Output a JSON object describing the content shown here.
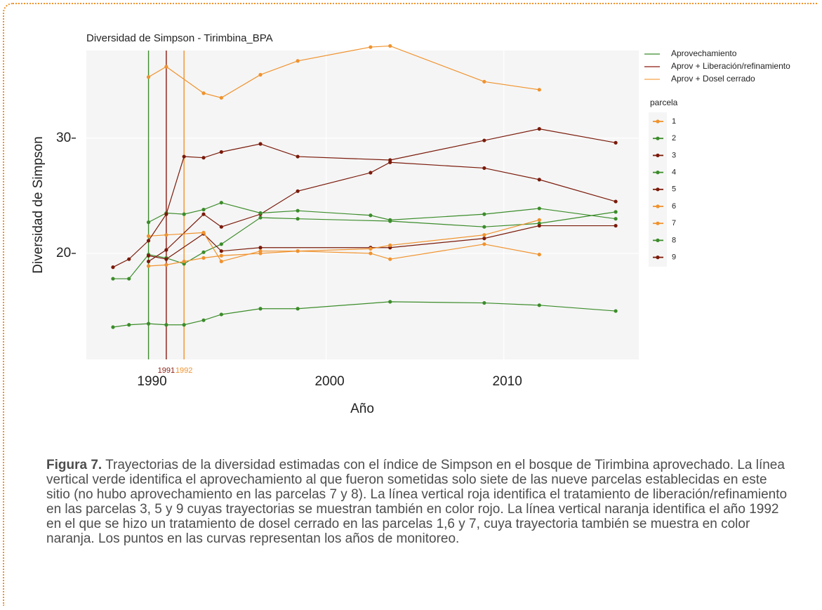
{
  "chart_data": {
    "type": "line",
    "title": "Diversidad de Simpson - Tirimbina_BPA",
    "xlabel": "Año",
    "ylabel": "Diversidad de Simpson",
    "xlim": [
      1986.5,
      2017.6
    ],
    "ylim": [
      10.8,
      37.6
    ],
    "xticks": [
      1990,
      2000,
      2010
    ],
    "yticks": [
      20,
      30
    ],
    "grid": true,
    "vlines": [
      {
        "x": 1990,
        "color": "#3b8c2a"
      },
      {
        "x": 1991,
        "color": "#8b1a0e",
        "label": "1991"
      },
      {
        "x": 1992,
        "color": "#f0922c",
        "label": "1992"
      }
    ],
    "treatments": [
      {
        "name": "Aprovechamiento",
        "color": "#3b8c2a"
      },
      {
        "name": "Aprov + Liberación/refinamiento",
        "color": "#8b1a0e"
      },
      {
        "name": "Aprov + Dosel cerrado",
        "color": "#f5a347"
      }
    ],
    "legend_title": "parcela",
    "series": [
      {
        "name": "1",
        "color": "#f0922c",
        "x": [
          1990,
          1991,
          1993.1,
          1994.1,
          1996.3,
          1998.4,
          2002.5,
          2003.6,
          2008.9,
          2012
        ],
        "values": [
          35.3,
          36.2,
          33.9,
          33.5,
          35.5,
          36.7,
          37.9,
          38.0,
          34.9,
          34.2
        ]
      },
      {
        "name": "2",
        "color": "#3b8c2a",
        "x": [
          1988,
          1988.9,
          1990,
          1991,
          1992,
          1993.1,
          1994.1,
          1996.3,
          1998.4,
          2003.6,
          2008.9,
          2012,
          2016.3
        ],
        "values": [
          17.8,
          17.8,
          19.9,
          19.6,
          19.1,
          20.1,
          20.8,
          23.1,
          23.0,
          22.8,
          22.3,
          22.6,
          23.6
        ]
      },
      {
        "name": "3",
        "color": "#7a1a0a",
        "x": [
          1990,
          1991,
          1993.1,
          1994.1,
          1996.3,
          1998.4,
          2002.5,
          2003.6,
          2008.9,
          2012,
          2016.3
        ],
        "values": [
          19.3,
          20.3,
          23.4,
          22.3,
          23.4,
          25.4,
          27.0,
          27.9,
          27.4,
          26.4,
          24.5
        ]
      },
      {
        "name": "4",
        "color": "#3b8c2a",
        "x": [
          1990,
          1991,
          1992,
          1993.1,
          1994.1,
          1996.3,
          1998.4,
          2002.5,
          2003.6,
          2008.9,
          2012,
          2016.3
        ],
        "values": [
          22.7,
          23.5,
          23.4,
          23.8,
          24.4,
          23.5,
          23.7,
          23.3,
          22.9,
          23.4,
          23.9,
          23.0
        ]
      },
      {
        "name": "5",
        "color": "#7a1a0a",
        "x": [
          1990,
          1991,
          1993.1,
          1994.1,
          1996.3,
          2002.5,
          2003.6,
          2008.9,
          2012,
          2016.3
        ],
        "values": [
          19.8,
          19.5,
          21.7,
          20.2,
          20.5,
          20.5,
          20.5,
          21.3,
          22.4,
          22.4
        ]
      },
      {
        "name": "6",
        "color": "#f0922c",
        "x": [
          1990,
          1991,
          1993.1,
          1994.1,
          1996.3,
          1998.4,
          2002.5,
          2003.6,
          2008.9,
          2012
        ],
        "values": [
          21.5,
          21.6,
          21.8,
          19.3,
          20.2,
          20.2,
          20.4,
          20.7,
          21.6,
          22.9
        ]
      },
      {
        "name": "7",
        "color": "#f0922c",
        "x": [
          1990,
          1991,
          1992,
          1993.1,
          1994.1,
          1996.3,
          1998.4,
          2002.5,
          2003.6,
          2008.9,
          2012
        ],
        "values": [
          18.9,
          19.0,
          19.3,
          19.6,
          19.8,
          20.0,
          20.2,
          20.0,
          19.5,
          20.8,
          19.9
        ]
      },
      {
        "name": "8",
        "color": "#3b8c2a",
        "x": [
          1988,
          1988.9,
          1990,
          1991,
          1992,
          1993.1,
          1994.1,
          1996.3,
          1998.4,
          2003.6,
          2008.9,
          2012,
          2016.3
        ],
        "values": [
          13.6,
          13.8,
          13.9,
          13.8,
          13.8,
          14.2,
          14.7,
          15.2,
          15.2,
          15.8,
          15.7,
          15.5,
          15.0
        ]
      },
      {
        "name": "9",
        "color": "#7a1a0a",
        "x": [
          1988,
          1988.9,
          1990,
          1991,
          1992,
          1993.1,
          1994.1,
          1996.3,
          1998.4,
          2003.6,
          2008.9,
          2012,
          2016.3
        ],
        "values": [
          18.8,
          19.5,
          21.1,
          23.4,
          28.4,
          28.3,
          28.8,
          29.5,
          28.4,
          28.1,
          29.8,
          30.8,
          29.6
        ]
      }
    ]
  },
  "caption": {
    "label": "Figura 7.",
    "text": "Trayectorias de la diversidad estimadas con el índice de Simpson en el bosque de Tirimbina aprovechado. La línea vertical verde identifica el aprovechamiento al que fueron sometidas solo siete de las nueve parcelas establecidas en este sitio (no hubo aprovechamiento en las parcelas 7 y 8). La línea vertical roja identifica el tratamiento de liberación/refinamiento en las parcelas 3, 5 y 9 cuyas trayectorias se muestran también en color rojo. La línea vertical naranja identifica el año 1992 en el que se hizo un tratamiento de dosel cerrado en las parcelas 1,6 y 7, cuya trayectoria también se muestra en color naranja. Los puntos en las curvas representan los años de monitoreo."
  }
}
